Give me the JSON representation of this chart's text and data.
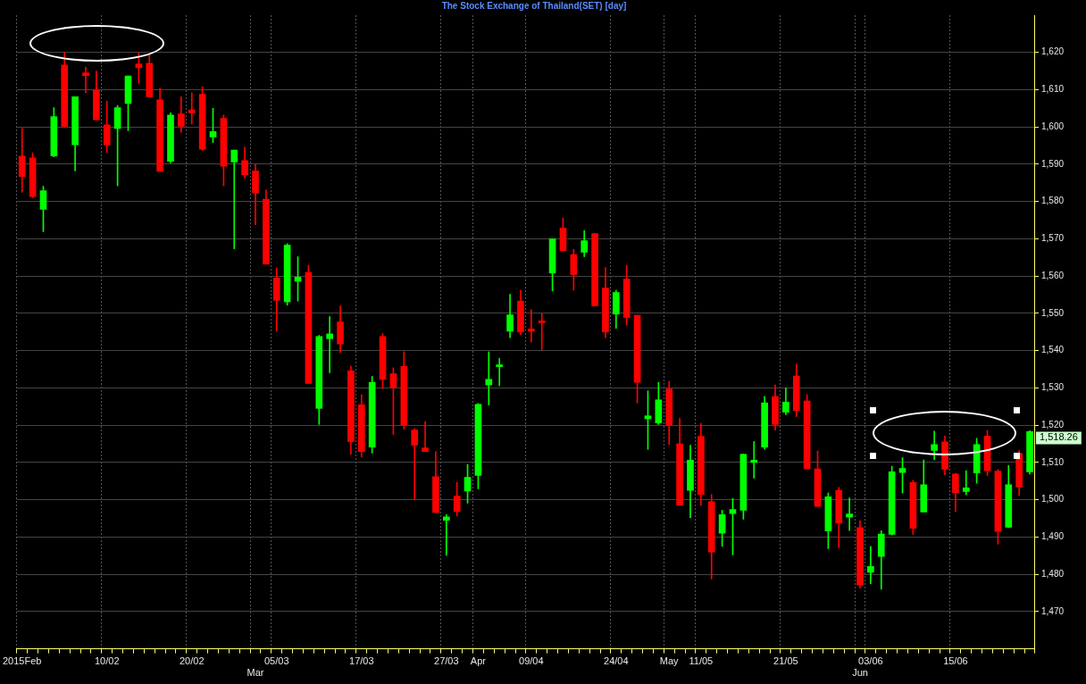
{
  "chart_data": {
    "type": "candlestick",
    "title": "The Stock Exchange of Thailand(SET) [day]",
    "categories": [
      "2015Feb",
      null,
      null,
      null,
      null,
      null,
      null,
      null,
      "10/02",
      null,
      null,
      null,
      null,
      null,
      null,
      null,
      "20/02",
      null,
      null,
      null,
      null,
      null,
      "Mar",
      null,
      "05/03",
      null,
      null,
      null,
      null,
      null,
      null,
      null,
      "17/03",
      null,
      null,
      null,
      null,
      null,
      null,
      null,
      "27/03",
      null,
      null,
      "Apr",
      null,
      null,
      null,
      null,
      "09/04",
      null,
      null,
      null,
      null,
      null,
      null,
      null,
      "24/04",
      null,
      null,
      null,
      null,
      "May",
      null,
      null,
      "11/05",
      null,
      null,
      null,
      null,
      null,
      null,
      null,
      "21/05",
      null,
      null,
      null,
      null,
      null,
      null,
      "Jun",
      "03/06",
      null,
      null,
      null,
      null,
      null,
      null,
      null,
      "15/06",
      null,
      null,
      null,
      null,
      null,
      null,
      null
    ],
    "ohlc": [
      [
        1592.2,
        1599.6,
        1582.5,
        1586.7
      ],
      [
        1591.7,
        1593.1,
        1581.0,
        1581.3
      ],
      [
        1577.9,
        1584.1,
        1571.9,
        1582.9
      ],
      [
        1592.2,
        1605.2,
        1592.0,
        1602.8
      ],
      [
        1616.6,
        1620.0,
        1600.0,
        1600.2
      ],
      [
        1595.2,
        1608.1,
        1588.2,
        1608.1
      ],
      [
        1614.5,
        1616.0,
        1609.2,
        1613.8
      ],
      [
        1610.0,
        1615.0,
        1601.9,
        1601.9
      ],
      [
        1600.6,
        1606.9,
        1593.1,
        1595.2
      ],
      [
        1599.6,
        1605.8,
        1584.2,
        1605.2
      ],
      [
        1606.3,
        1613.7,
        1599.0,
        1613.7
      ],
      [
        1616.9,
        1620.0,
        1611.7,
        1615.9
      ],
      [
        1617.1,
        1619.4,
        1608.1,
        1608.1
      ],
      [
        1607.3,
        1610.4,
        1588.1,
        1588.1
      ],
      [
        1590.8,
        1603.8,
        1590.4,
        1603.2
      ],
      [
        1603.5,
        1608.1,
        1598.5,
        1600.2
      ],
      [
        1604.6,
        1609.2,
        1600.8,
        1603.8
      ],
      [
        1608.8,
        1610.8,
        1593.7,
        1594.0
      ],
      [
        1597.3,
        1605.0,
        1595.8,
        1598.8
      ],
      [
        1602.3,
        1603.2,
        1584.2,
        1589.5
      ],
      [
        1590.6,
        1593.8,
        1567.3,
        1593.8
      ],
      [
        1591.0,
        1594.6,
        1586.3,
        1587.2
      ],
      [
        1588.2,
        1590.0,
        1573.8,
        1582.3
      ],
      [
        1580.6,
        1583.1,
        1563.2,
        1563.2
      ],
      [
        1559.5,
        1562.2,
        1545.2,
        1553.5
      ],
      [
        1553.1,
        1568.7,
        1552.2,
        1568.3
      ],
      [
        1558.6,
        1565.2,
        1553.3,
        1559.7
      ],
      [
        1561.0,
        1562.9,
        1531.2,
        1531.2
      ],
      [
        1524.5,
        1544.1,
        1520.2,
        1543.8
      ],
      [
        1543.2,
        1549.1,
        1534.1,
        1544.5
      ],
      [
        1547.7,
        1552.0,
        1539.5,
        1541.8
      ],
      [
        1534.6,
        1535.8,
        1512.2,
        1515.6
      ],
      [
        1525.5,
        1528.2,
        1511.5,
        1512.9
      ],
      [
        1514.1,
        1533.1,
        1512.5,
        1531.5
      ],
      [
        1543.8,
        1544.6,
        1529.8,
        1532.3
      ],
      [
        1533.8,
        1535.4,
        1517.5,
        1530.1
      ],
      [
        1535.8,
        1539.7,
        1518.9,
        1520.0
      ],
      [
        1518.7,
        1519.1,
        1500.0,
        1514.6
      ],
      [
        1513.9,
        1521.0,
        1512.9,
        1512.9
      ],
      [
        1506.2,
        1512.9,
        1496.6,
        1496.6
      ],
      [
        1494.5,
        1496.0,
        1485.1,
        1495.4
      ],
      [
        1501.0,
        1504.6,
        1495.6,
        1496.8
      ],
      [
        1502.3,
        1509.5,
        1499.1,
        1506.0
      ],
      [
        1506.5,
        1525.8,
        1502.9,
        1525.6
      ],
      [
        1530.8,
        1539.7,
        1525.4,
        1532.3
      ],
      [
        1535.7,
        1537.9,
        1530.6,
        1536.2
      ],
      [
        1545.2,
        1555.1,
        1543.5,
        1549.6
      ],
      [
        1553.3,
        1556.2,
        1544.3,
        1545.0
      ],
      [
        1545.8,
        1551.0,
        1542.3,
        1545.2
      ],
      [
        1548.0,
        1550.0,
        1540.2,
        1547.5
      ],
      [
        1560.8,
        1570.0,
        1556.0,
        1570.0
      ],
      [
        1572.9,
        1575.6,
        1566.8,
        1566.8
      ],
      [
        1565.8,
        1567.2,
        1556.2,
        1560.4
      ],
      [
        1566.4,
        1572.2,
        1565.2,
        1569.5
      ],
      [
        1571.4,
        1571.4,
        1552.0,
        1552.0
      ],
      [
        1556.8,
        1562.3,
        1543.5,
        1545.0
      ],
      [
        1549.8,
        1556.2,
        1546.0,
        1555.6
      ],
      [
        1559.2,
        1562.9,
        1546.8,
        1548.9
      ],
      [
        1549.5,
        1549.5,
        1526.0,
        1531.5
      ],
      [
        1521.7,
        1529.2,
        1513.5,
        1522.5
      ],
      [
        1520.6,
        1531.5,
        1520.2,
        1526.8
      ],
      [
        1529.7,
        1531.8,
        1514.8,
        1520.0
      ],
      [
        1515.0,
        1521.8,
        1498.5,
        1498.5
      ],
      [
        1502.5,
        1514.6,
        1495.2,
        1510.6
      ],
      [
        1517.0,
        1520.5,
        1498.5,
        1501.4
      ],
      [
        1499.5,
        1501.4,
        1478.7,
        1486.0
      ],
      [
        1491.0,
        1497.2,
        1487.5,
        1496.0
      ],
      [
        1496.3,
        1500.4,
        1485.2,
        1497.4
      ],
      [
        1497.2,
        1512.3,
        1494.8,
        1512.2
      ],
      [
        1510.0,
        1515.6,
        1505.8,
        1510.6
      ],
      [
        1514.1,
        1527.7,
        1513.5,
        1526.0
      ],
      [
        1527.7,
        1530.8,
        1518.7,
        1520.2
      ],
      [
        1523.5,
        1530.0,
        1522.8,
        1526.2
      ],
      [
        1533.2,
        1536.4,
        1522.3,
        1523.9
      ],
      [
        1526.5,
        1528.2,
        1508.3,
        1508.3
      ],
      [
        1508.3,
        1513.1,
        1498.2,
        1498.2
      ],
      [
        1491.6,
        1501.8,
        1486.9,
        1500.8
      ],
      [
        1502.5,
        1503.3,
        1487.2,
        1493.7
      ],
      [
        1495.3,
        1500.5,
        1491.7,
        1496.2
      ],
      [
        1492.5,
        1494.4,
        1476.3,
        1477.1
      ],
      [
        1480.5,
        1487.5,
        1477.5,
        1482.1
      ],
      [
        1484.8,
        1491.7,
        1476.0,
        1490.8
      ],
      [
        1490.7,
        1509.0,
        1490.5,
        1507.5
      ],
      [
        1507.3,
        1511.3,
        1501.8,
        1508.4
      ],
      [
        1504.6,
        1505.2,
        1490.7,
        1492.3
      ],
      [
        1496.7,
        1510.7,
        1496.7,
        1504.0
      ],
      [
        1513.2,
        1518.4,
        1510.7,
        1514.8
      ],
      [
        1515.5,
        1517.1,
        1506.7,
        1508.2
      ],
      [
        1506.9,
        1507.1,
        1496.8,
        1501.9
      ],
      [
        1502.2,
        1507.8,
        1501.3,
        1503.2
      ],
      [
        1507.2,
        1516.5,
        1504.4,
        1514.8
      ],
      [
        1517.1,
        1518.6,
        1506.5,
        1507.8
      ],
      [
        1507.7,
        1508.1,
        1488.1,
        1491.5
      ],
      [
        1492.6,
        1509.2,
        1492.5,
        1504.0
      ],
      [
        1512.5,
        1513.2,
        1501.1,
        1503.4
      ],
      [
        1507.5,
        1518.5,
        1506.9,
        1518.26
      ]
    ],
    "colors": [
      "#ff0000",
      "#ff0000",
      "#00ff00",
      "#00ff00",
      "#ff0000",
      "#00ff00",
      "#ff0000",
      "#ff0000",
      "#ff0000",
      "#00ff00",
      "#00ff00",
      "#ff0000",
      "#ff0000",
      "#ff0000",
      "#00ff00",
      "#ff0000",
      "#ff0000",
      "#ff0000",
      "#00ff00",
      "#ff0000",
      "#00ff00",
      "#ff0000",
      "#ff0000",
      "#ff0000",
      "#ff0000",
      "#00ff00",
      "#00ff00",
      "#ff0000",
      "#00ff00",
      "#00ff00",
      "#ff0000",
      "#ff0000",
      "#ff0000",
      "#00ff00",
      "#ff0000",
      "#ff0000",
      "#ff0000",
      "#ff0000",
      "#ff0000",
      "#ff0000",
      "#00ff00",
      "#ff0000",
      "#00ff00",
      "#00ff00",
      "#00ff00",
      "#00ff00",
      "#00ff00",
      "#ff0000",
      "#ff0000",
      "#ff0000",
      "#00ff00",
      "#ff0000",
      "#ff0000",
      "#00ff00",
      "#ff0000",
      "#ff0000",
      "#00ff00",
      "#ff0000",
      "#ff0000",
      "#00ff00",
      "#00ff00",
      "#ff0000",
      "#ff0000",
      "#00ff00",
      "#ff0000",
      "#ff0000",
      "#00ff00",
      "#00ff00",
      "#00ff00",
      "#00ff00",
      "#00ff00",
      "#ff0000",
      "#00ff00",
      "#ff0000",
      "#ff0000",
      "#ff0000",
      "#00ff00",
      "#ff0000",
      "#00ff00",
      "#ff0000",
      "#00ff00",
      "#00ff00",
      "#00ff00",
      "#00ff00",
      "#ff0000",
      "#00ff00",
      "#00ff00",
      "#ff0000",
      "#ff0000",
      "#00ff00",
      "#00ff00",
      "#ff0000",
      "#ff0000",
      "#00ff00",
      "#ff0000",
      "#00ff00"
    ],
    "ylim": [
      1460,
      1630
    ],
    "yticks": [
      {
        "value": 1470,
        "label": "1,470"
      },
      {
        "value": 1480,
        "label": "1,480"
      },
      {
        "value": 1490,
        "label": "1,490"
      },
      {
        "value": 1500,
        "label": "1,500"
      },
      {
        "value": 1510,
        "label": "1,510"
      },
      {
        "value": 1520,
        "label": "1,520"
      },
      {
        "value": 1530,
        "label": "1,530"
      },
      {
        "value": 1540,
        "label": "1,540"
      },
      {
        "value": 1550,
        "label": "1,550"
      },
      {
        "value": 1560,
        "label": "1,560"
      },
      {
        "value": 1570,
        "label": "1,570"
      },
      {
        "value": 1580,
        "label": "1,580"
      },
      {
        "value": 1590,
        "label": "1,590"
      },
      {
        "value": 1600,
        "label": "1,600"
      },
      {
        "value": 1610,
        "label": "1,610"
      },
      {
        "value": 1620,
        "label": "1,620"
      }
    ],
    "grid": true,
    "annotations": [
      "1,518.26"
    ]
  }
}
